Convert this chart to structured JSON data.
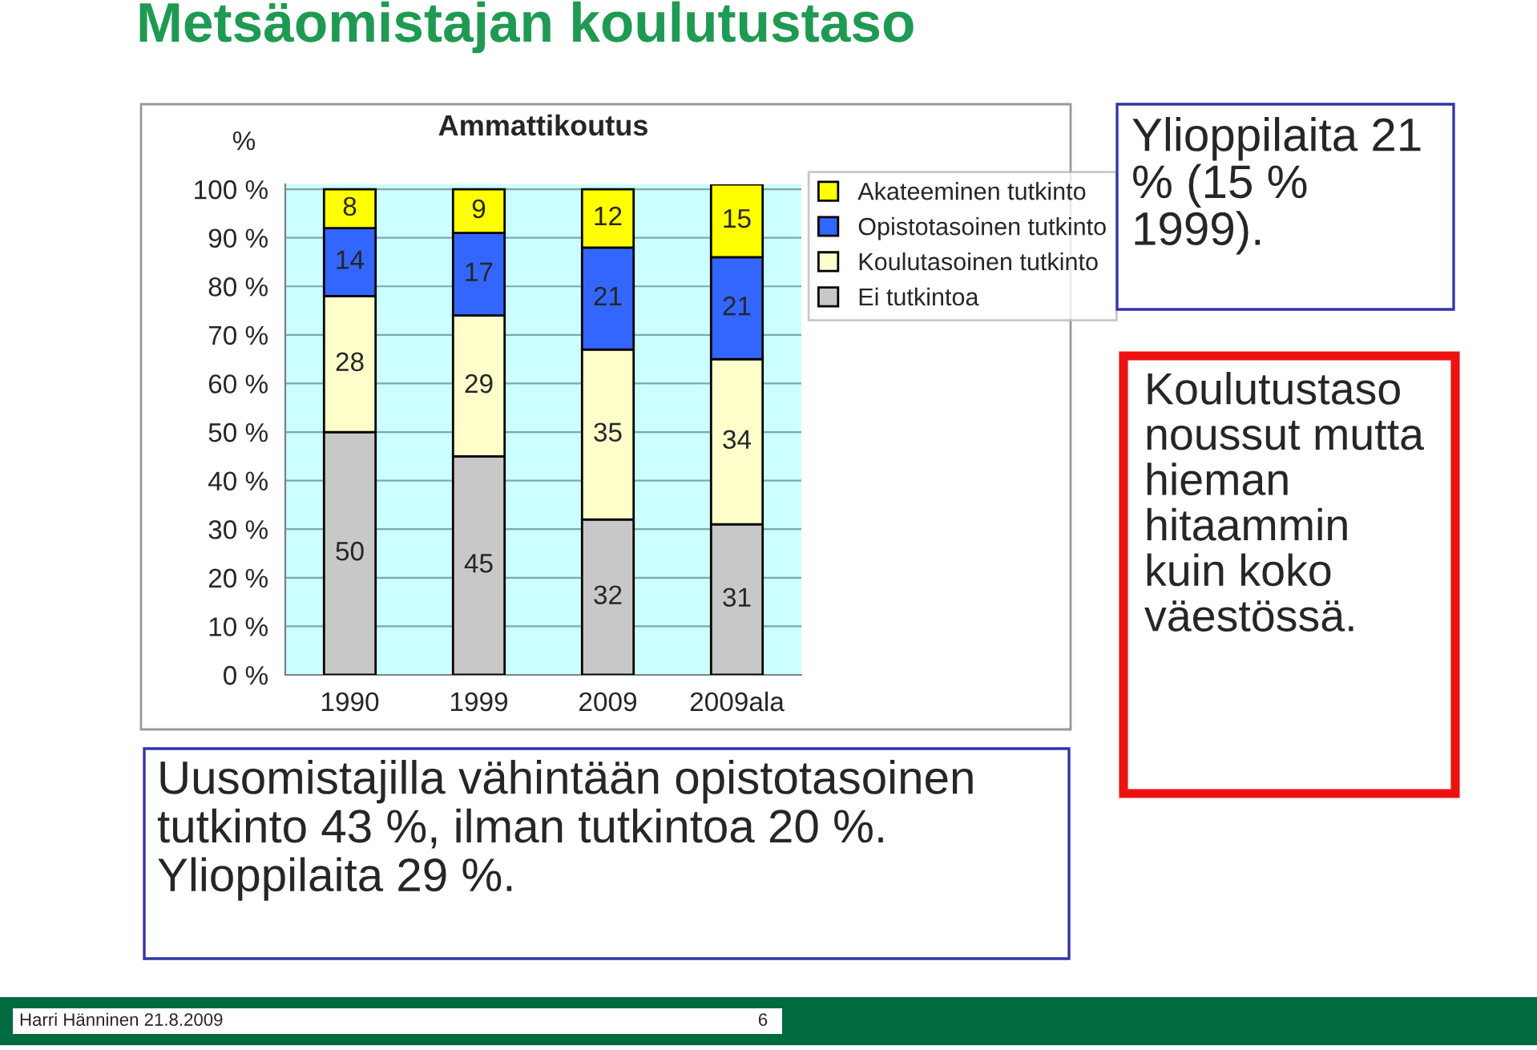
{
  "chart_data": {
    "type": "bar",
    "title": "Metsäomistajan koulutustaso",
    "subtitle": "Ammattikoutus",
    "ylabel": "%",
    "categories": [
      "1990",
      "1999",
      "2009",
      "2009ala"
    ],
    "stacked": true,
    "data_labels": true,
    "grid": "y",
    "legend": "top right",
    "ylim": [
      0,
      101
    ],
    "yticks": [
      {
        "value": 0,
        "label": "0 %"
      },
      {
        "value": 10,
        "label": "10 %"
      },
      {
        "value": 20,
        "label": "20 %"
      },
      {
        "value": 30,
        "label": "30 %"
      },
      {
        "value": 40,
        "label": "40 %"
      },
      {
        "value": 50,
        "label": "50 %"
      },
      {
        "value": 60,
        "label": "60 %"
      },
      {
        "value": 70,
        "label": "70 %"
      },
      {
        "value": 80,
        "label": "80 %"
      },
      {
        "value": 90,
        "label": "90 %"
      },
      {
        "value": 100,
        "label": "100 %"
      }
    ],
    "series": [
      {
        "name": "Ei tutkintoa",
        "color": "#c8c8c8",
        "values": [
          50,
          45,
          32,
          31
        ]
      },
      {
        "name": "Koulutasoinen tutkinto",
        "color": "#ffffcc",
        "values": [
          28,
          29,
          35,
          34
        ]
      },
      {
        "name": "Opistotasoinen tutkinto",
        "color": "#3366ff",
        "values": [
          14,
          17,
          21,
          21
        ]
      },
      {
        "name": "Akateeminen tutkinto",
        "color": "#ffff00",
        "values": [
          8,
          9,
          12,
          15
        ]
      }
    ],
    "annotations": [
      "Uusomistajilla vähintään opistotasoinen tutkinto 43 %, ilman tutkintoa 20 %. Ylioppilaita 29 %.",
      "Ylioppilaita 21 % (15 % 1999).",
      "Koulutustaso noussut mutta hieman hitaammin kuin koko väestössä.",
      "Harri Hänninen 21.8.2009",
      "6"
    ]
  }
}
